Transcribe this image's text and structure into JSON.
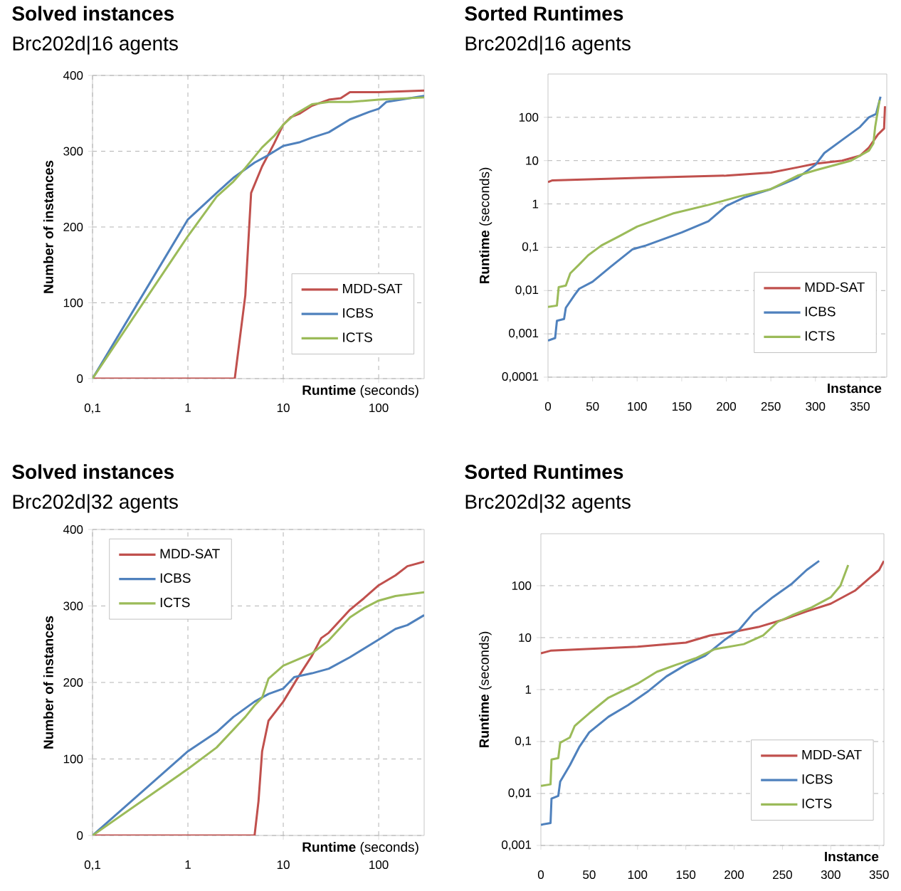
{
  "chart_data": [
    {
      "type": "line",
      "title": "Solved instances",
      "subtitle": "Brc202d|16 agents",
      "xlabel": "**Runtime** (seconds)",
      "ylabel": "Number of instances",
      "log": "x",
      "grid": true,
      "legend": "bottom right",
      "xlim": [
        0.1,
        300
      ],
      "ylim": [
        0,
        400
      ],
      "xticks": [
        {
          "value": 0.1,
          "label": "0,1"
        },
        1,
        10,
        100
      ],
      "yticks": [
        0,
        100,
        200,
        300,
        400
      ],
      "series": [
        {
          "name": "MDD-SAT",
          "color": "#c0504d",
          "x": [
            0.1,
            3.1,
            4,
            4.6,
            6,
            8,
            10,
            12,
            15,
            20,
            30,
            40,
            50,
            100,
            300
          ],
          "values": [
            0,
            0,
            110,
            245,
            280,
            310,
            335,
            345,
            350,
            360,
            368,
            370,
            378,
            378,
            380
          ]
        },
        {
          "name": "ICBS",
          "color": "#4f81bd",
          "x": [
            0.1,
            1,
            2,
            3,
            5,
            7,
            10,
            15,
            20,
            30,
            50,
            80,
            100,
            120,
            300
          ],
          "values": [
            0,
            210,
            245,
            265,
            285,
            295,
            307,
            312,
            318,
            325,
            342,
            352,
            356,
            365,
            373
          ]
        },
        {
          "name": "ICTS",
          "color": "#9bbb59",
          "x": [
            0.1,
            1,
            2,
            3,
            4,
            6,
            8,
            10,
            13,
            20,
            30,
            50,
            100,
            300
          ],
          "values": [
            0,
            188,
            240,
            260,
            278,
            305,
            320,
            335,
            348,
            362,
            365,
            365,
            368,
            371
          ]
        }
      ]
    },
    {
      "type": "line",
      "title": "Sorted Runtimes",
      "subtitle": "Brc202d|16 agents",
      "xlabel": "Instance",
      "ylabel": "**Runtime** (seconds)",
      "log": "y",
      "grid": "y",
      "legend": "bottom right",
      "xlim": [
        0,
        380
      ],
      "ylim": [
        0.0001,
        1000
      ],
      "xticks": [
        0,
        50,
        100,
        150,
        200,
        250,
        300,
        350
      ],
      "yticks": [
        {
          "value": 0.0001,
          "label": "0,0001"
        },
        {
          "value": 0.001,
          "label": "0,001"
        },
        {
          "value": 0.01,
          "label": "0,01"
        },
        {
          "value": 0.1,
          "label": "0,1"
        },
        1,
        10,
        100
      ],
      "series": [
        {
          "name": "MDD-SAT",
          "color": "#c0504d",
          "x": [
            0,
            5,
            100,
            200,
            250,
            280,
            300,
            330,
            350,
            360,
            370,
            377,
            378
          ],
          "values": [
            3.2,
            3.5,
            4,
            4.5,
            5.3,
            7,
            8.5,
            10,
            13,
            20,
            40,
            55,
            180
          ]
        },
        {
          "name": "ICBS",
          "color": "#4f81bd",
          "x": [
            0,
            8,
            10,
            18,
            20,
            30,
            35,
            50,
            70,
            95,
            110,
            150,
            180,
            200,
            220,
            250,
            280,
            300,
            310,
            330,
            350,
            360,
            368,
            373
          ],
          "values": [
            0.0007,
            0.0008,
            0.002,
            0.0022,
            0.004,
            0.008,
            0.011,
            0.016,
            0.035,
            0.09,
            0.11,
            0.22,
            0.4,
            0.9,
            1.4,
            2.2,
            4,
            8,
            15,
            30,
            60,
            100,
            120,
            300
          ]
        },
        {
          "name": "ICTS",
          "color": "#9bbb59",
          "x": [
            0,
            10,
            12,
            20,
            25,
            35,
            45,
            60,
            80,
            100,
            140,
            180,
            215,
            250,
            280,
            300,
            340,
            360,
            365,
            367,
            372
          ],
          "values": [
            0.0042,
            0.0045,
            0.012,
            0.013,
            0.025,
            0.04,
            0.065,
            0.11,
            0.18,
            0.3,
            0.6,
            0.95,
            1.5,
            2.2,
            4.5,
            6,
            10,
            17,
            25,
            60,
            250
          ]
        }
      ]
    },
    {
      "type": "line",
      "title": "Solved instances",
      "subtitle": "Brc202d|32 agents",
      "xlabel": "**Runtime** (seconds)",
      "ylabel": "Number of instances",
      "log": "x",
      "grid": true,
      "legend": "top left",
      "xlim": [
        0.1,
        300
      ],
      "ylim": [
        0,
        400
      ],
      "xticks": [
        {
          "value": 0.1,
          "label": "0,1"
        },
        1,
        10,
        100
      ],
      "yticks": [
        0,
        100,
        200,
        300,
        400
      ],
      "series": [
        {
          "name": "MDD-SAT",
          "color": "#c0504d",
          "x": [
            0.1,
            5,
            5.5,
            6,
            7,
            10,
            14,
            20,
            25,
            30,
            50,
            70,
            100,
            150,
            200,
            300
          ],
          "values": [
            0,
            0,
            45,
            110,
            150,
            175,
            205,
            235,
            258,
            265,
            295,
            310,
            327,
            340,
            352,
            358
          ]
        },
        {
          "name": "ICBS",
          "color": "#4f81bd",
          "x": [
            0.1,
            1,
            2,
            3,
            5,
            7,
            10,
            13,
            20,
            30,
            50,
            100,
            150,
            200,
            300
          ],
          "values": [
            0,
            110,
            135,
            155,
            175,
            185,
            192,
            207,
            212,
            218,
            233,
            256,
            270,
            275,
            288
          ]
        },
        {
          "name": "ICTS",
          "color": "#9bbb59",
          "x": [
            0.1,
            1,
            2,
            4,
            5,
            6,
            7,
            10,
            20,
            30,
            50,
            70,
            100,
            150,
            300
          ],
          "values": [
            0,
            87,
            115,
            155,
            170,
            180,
            205,
            222,
            238,
            255,
            285,
            297,
            307,
            313,
            318
          ]
        }
      ]
    },
    {
      "type": "line",
      "title": "Sorted Runtimes",
      "subtitle": "Brc202d|32 agents",
      "xlabel": "Instance",
      "ylabel": "**Runtime** (seconds)",
      "log": "y",
      "grid": "y",
      "legend": "bottom right",
      "xlim": [
        0,
        355
      ],
      "ylim": [
        0.001,
        1000
      ],
      "xticks": [
        0,
        50,
        100,
        150,
        200,
        250,
        300,
        350
      ],
      "yticks": [
        {
          "value": 0.001,
          "label": "0,001"
        },
        {
          "value": 0.01,
          "label": "0,01"
        },
        {
          "value": 0.1,
          "label": "0,1"
        },
        1,
        10,
        100
      ],
      "series": [
        {
          "name": "MDD-SAT",
          "color": "#c0504d",
          "x": [
            0,
            10,
            100,
            150,
            175,
            200,
            225,
            250,
            275,
            300,
            325,
            340,
            350,
            355
          ],
          "values": [
            5,
            5.6,
            6.7,
            8,
            11,
            13,
            16,
            22,
            32,
            45,
            80,
            140,
            200,
            300
          ]
        },
        {
          "name": "ICBS",
          "color": "#4f81bd",
          "x": [
            0,
            10,
            11,
            18,
            20,
            30,
            40,
            50,
            70,
            90,
            110,
            130,
            150,
            170,
            190,
            205,
            220,
            240,
            260,
            275,
            288
          ],
          "values": [
            0.0025,
            0.0027,
            0.008,
            0.009,
            0.017,
            0.035,
            0.08,
            0.15,
            0.3,
            0.5,
            0.9,
            1.8,
            3,
            4.5,
            9,
            14,
            30,
            60,
            110,
            200,
            300
          ]
        },
        {
          "name": "ICTS",
          "color": "#9bbb59",
          "x": [
            0,
            10,
            11,
            18,
            20,
            30,
            35,
            50,
            70,
            100,
            120,
            140,
            160,
            180,
            210,
            230,
            245,
            260,
            280,
            300,
            310,
            318
          ],
          "values": [
            0.014,
            0.015,
            0.045,
            0.048,
            0.095,
            0.12,
            0.2,
            0.35,
            0.7,
            1.3,
            2.2,
            3,
            4,
            6,
            7.5,
            11,
            20,
            27,
            38,
            60,
            100,
            250
          ]
        }
      ]
    }
  ]
}
